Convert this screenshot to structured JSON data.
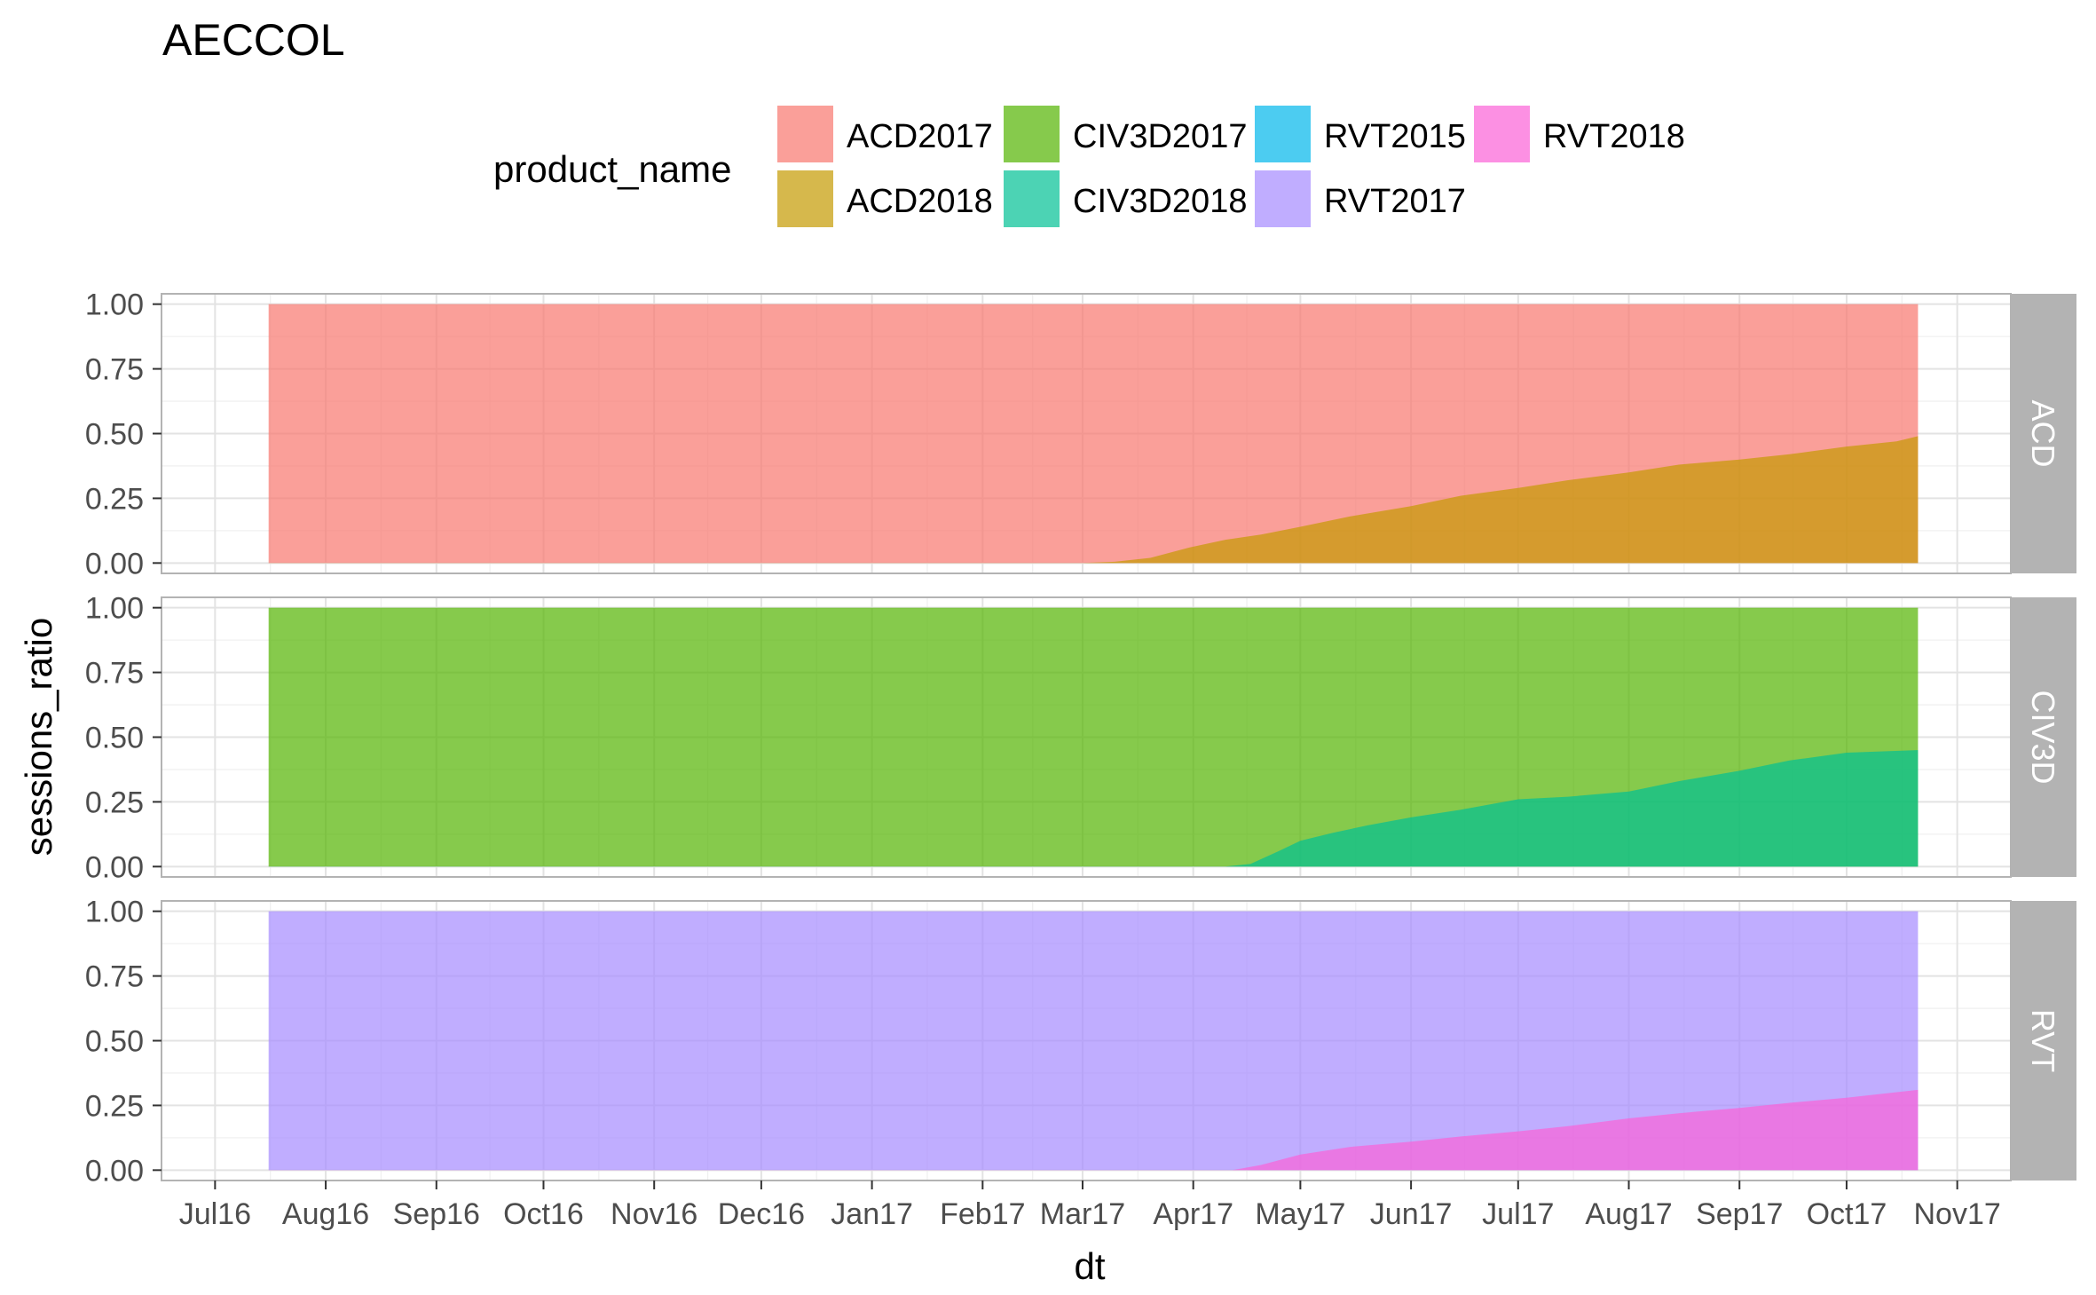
{
  "title": "AECCOL",
  "legend": {
    "title": "product_name",
    "entries": [
      {
        "name": "ACD2017",
        "color": "#F8766D"
      },
      {
        "name": "ACD2018",
        "color": "#C49A00"
      },
      {
        "name": "CIV3D2017",
        "color": "#53B400"
      },
      {
        "name": "CIV3D2018",
        "color": "#00C094"
      },
      {
        "name": "RVT2015",
        "color": "#00B6EB"
      },
      {
        "name": "RVT2017",
        "color": "#A58AFF"
      },
      {
        "name": "RVT2018",
        "color": "#FB61D7"
      }
    ]
  },
  "chart_data": {
    "type": "area",
    "stacked": true,
    "facets": [
      "ACD",
      "CIV3D",
      "RVT"
    ],
    "xlabel": "dt",
    "ylabel": "sessions_ratio",
    "xlim": [
      "2016-06-16",
      "2017-11-16"
    ],
    "ylim": [
      -0.04,
      1.04
    ],
    "yticks": [
      0.0,
      0.25,
      0.5,
      0.75,
      1.0
    ],
    "ytick_labels": [
      "0.00",
      "0.25",
      "0.50",
      "0.75",
      "1.00"
    ],
    "xticks": [
      {
        "date": "2016-07-01",
        "label": "Jul16"
      },
      {
        "date": "2016-08-01",
        "label": "Aug16"
      },
      {
        "date": "2016-09-01",
        "label": "Sep16"
      },
      {
        "date": "2016-10-01",
        "label": "Oct16"
      },
      {
        "date": "2016-11-01",
        "label": "Nov16"
      },
      {
        "date": "2016-12-01",
        "label": "Dec16"
      },
      {
        "date": "2017-01-01",
        "label": "Jan17"
      },
      {
        "date": "2017-02-01",
        "label": "Feb17"
      },
      {
        "date": "2017-03-01",
        "label": "Mar17"
      },
      {
        "date": "2017-04-01",
        "label": "Apr17"
      },
      {
        "date": "2017-05-01",
        "label": "May17"
      },
      {
        "date": "2017-06-01",
        "label": "Jun17"
      },
      {
        "date": "2017-07-01",
        "label": "Jul17"
      },
      {
        "date": "2017-08-01",
        "label": "Aug17"
      },
      {
        "date": "2017-09-01",
        "label": "Sep17"
      },
      {
        "date": "2017-10-01",
        "label": "Oct17"
      },
      {
        "date": "2017-11-01",
        "label": "Nov17"
      }
    ],
    "grid": true,
    "legend_position": "top",
    "panels": [
      {
        "facet": "ACD",
        "series": [
          {
            "name": "ACD2017",
            "color": "#F8766D",
            "role": "base"
          },
          {
            "name": "ACD2018",
            "color": "#C49A00",
            "role": "top",
            "x": [
              "2016-07-16",
              "2017-03-01",
              "2017-03-10",
              "2017-03-20",
              "2017-03-31",
              "2017-04-10",
              "2017-04-20",
              "2017-05-01",
              "2017-05-15",
              "2017-06-01",
              "2017-06-15",
              "2017-07-01",
              "2017-07-15",
              "2017-08-01",
              "2017-08-15",
              "2017-09-01",
              "2017-09-15",
              "2017-10-01",
              "2017-10-15",
              "2017-10-21"
            ],
            "y": [
              0,
              0,
              0.005,
              0.02,
              0.06,
              0.09,
              0.11,
              0.14,
              0.18,
              0.22,
              0.26,
              0.29,
              0.32,
              0.35,
              0.38,
              0.4,
              0.42,
              0.45,
              0.47,
              0.49
            ]
          }
        ]
      },
      {
        "facet": "CIV3D",
        "series": [
          {
            "name": "CIV3D2017",
            "color": "#53B400",
            "role": "base"
          },
          {
            "name": "CIV3D2018",
            "color": "#00C094",
            "role": "top",
            "x": [
              "2016-07-16",
              "2017-04-10",
              "2017-04-17",
              "2017-04-25",
              "2017-05-01",
              "2017-05-10",
              "2017-05-20",
              "2017-06-01",
              "2017-06-15",
              "2017-07-01",
              "2017-07-15",
              "2017-08-01",
              "2017-08-15",
              "2017-09-01",
              "2017-09-15",
              "2017-10-01",
              "2017-10-21"
            ],
            "y": [
              0,
              0,
              0.01,
              0.06,
              0.1,
              0.13,
              0.16,
              0.19,
              0.22,
              0.26,
              0.27,
              0.29,
              0.33,
              0.37,
              0.41,
              0.44,
              0.45
            ]
          }
        ]
      },
      {
        "facet": "RVT",
        "series": [
          {
            "name": "RVT2017",
            "color": "#A58AFF",
            "role": "base"
          },
          {
            "name": "RVT2018",
            "color": "#FB61D7",
            "role": "top",
            "x": [
              "2016-07-16",
              "2017-04-12",
              "2017-04-20",
              "2017-05-01",
              "2017-05-15",
              "2017-06-01",
              "2017-06-15",
              "2017-07-01",
              "2017-07-15",
              "2017-08-01",
              "2017-08-15",
              "2017-09-01",
              "2017-09-15",
              "2017-10-01",
              "2017-10-21"
            ],
            "y": [
              0,
              0,
              0.02,
              0.06,
              0.09,
              0.11,
              0.13,
              0.15,
              0.17,
              0.2,
              0.22,
              0.24,
              0.26,
              0.28,
              0.31
            ]
          }
        ]
      }
    ]
  }
}
